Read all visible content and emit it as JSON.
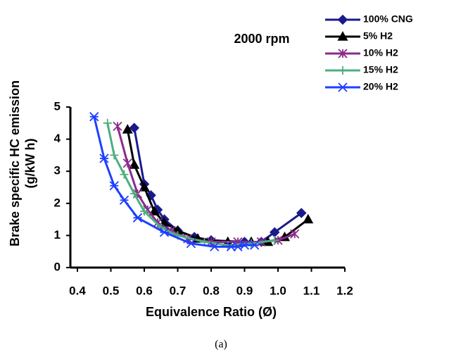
{
  "chart_data": {
    "type": "line",
    "annotation": "2000 rpm",
    "xlabel": "Equivalence Ratio (Ø)",
    "ylabel": [
      "Brake specific HC emission",
      "(g/kW h)"
    ],
    "caption": "(a)",
    "xlim": [
      0.4,
      1.2
    ],
    "xticks": [
      0.4,
      0.5,
      0.6,
      0.7,
      0.8,
      0.9,
      {
        "value": 1,
        "label": "1.0"
      },
      1.1,
      1.2
    ],
    "ylim": [
      0,
      5
    ],
    "yticks": [
      0,
      1,
      2,
      3,
      4,
      5
    ],
    "legend": "top-right",
    "series": [
      {
        "name": "100% CNG",
        "color": "#1a1a8c",
        "marker": "diamond",
        "x": [
          0.57,
          0.6,
          0.62,
          0.64,
          0.66,
          0.7,
          0.75,
          0.8,
          0.9,
          0.95,
          0.99,
          1.07
        ],
        "values": [
          4.35,
          2.6,
          2.25,
          1.8,
          1.5,
          1.15,
          0.95,
          0.85,
          0.8,
          0.8,
          1.1,
          1.7
        ]
      },
      {
        "name": "5% H2",
        "color": "#000000",
        "marker": "triangle",
        "x": [
          0.55,
          0.57,
          0.6,
          0.63,
          0.66,
          0.7,
          0.76,
          0.85,
          0.92,
          0.97,
          1.02,
          1.09
        ],
        "values": [
          4.3,
          3.2,
          2.5,
          1.75,
          1.4,
          1.15,
          0.9,
          0.8,
          0.8,
          0.8,
          0.95,
          1.5
        ]
      },
      {
        "name": "10% H2",
        "color": "#8b2a8b",
        "marker": "asterisk",
        "x": [
          0.52,
          0.55,
          0.58,
          0.61,
          0.64,
          0.68,
          0.73,
          0.8,
          0.88,
          0.95,
          1.0,
          1.05
        ],
        "values": [
          4.4,
          3.25,
          2.3,
          1.8,
          1.4,
          1.15,
          0.9,
          0.8,
          0.8,
          0.8,
          0.85,
          1.05
        ]
      },
      {
        "name": "15% H2",
        "color": "#4caf7f",
        "marker": "plus",
        "x": [
          0.49,
          0.51,
          0.54,
          0.57,
          0.6,
          0.65,
          0.7,
          0.78,
          0.85,
          0.92,
          0.99
        ],
        "values": [
          4.5,
          3.5,
          2.9,
          2.3,
          1.75,
          1.25,
          1.0,
          0.8,
          0.7,
          0.75,
          0.85
        ]
      },
      {
        "name": "20% H2",
        "color": "#1f3fff",
        "marker": "star",
        "x": [
          0.45,
          0.48,
          0.51,
          0.54,
          0.58,
          0.66,
          0.74,
          0.81,
          0.86,
          0.88,
          0.9,
          0.93
        ],
        "values": [
          4.7,
          3.4,
          2.55,
          2.1,
          1.55,
          1.1,
          0.75,
          0.65,
          0.65,
          0.65,
          0.7,
          0.7
        ]
      }
    ]
  }
}
